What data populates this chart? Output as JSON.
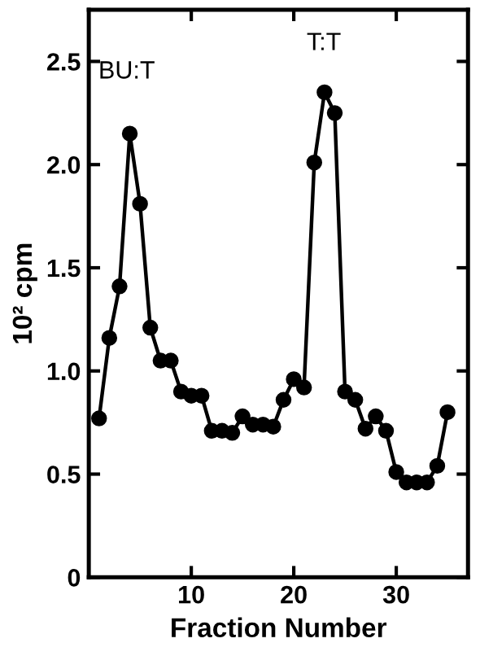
{
  "chart_data": {
    "type": "line",
    "xlabel": "Fraction Number",
    "ylabel": "10² cpm",
    "x": [
      1,
      2,
      3,
      4,
      5,
      6,
      7,
      8,
      9,
      10,
      11,
      12,
      13,
      14,
      15,
      16,
      17,
      18,
      19,
      20,
      21,
      22,
      23,
      24,
      25,
      26,
      27,
      28,
      29,
      30,
      31,
      32,
      33,
      34,
      35
    ],
    "series": [
      {
        "color": "#000000",
        "values": [
          0.77,
          1.16,
          1.41,
          2.15,
          1.81,
          1.21,
          1.05,
          1.05,
          0.9,
          0.88,
          0.88,
          0.71,
          0.71,
          0.7,
          0.78,
          0.74,
          0.74,
          0.73,
          0.86,
          0.96,
          0.92,
          2.01,
          2.35,
          2.25,
          0.9,
          0.86,
          0.72,
          0.78,
          0.71,
          0.51,
          0.46,
          0.46,
          0.46,
          0.54,
          0.8
        ]
      }
    ],
    "xlim": [
      0,
      37
    ],
    "xticks": [
      10,
      20,
      30
    ],
    "ylim": [
      0,
      2.75
    ],
    "yticks": [
      0,
      0.5,
      {
        "value": 1,
        "label": "1.0"
      },
      1.5,
      {
        "value": 2,
        "label": "2.0"
      },
      2.5
    ],
    "annotations": [
      "BU:T",
      "T:T"
    ],
    "marker": "circle",
    "line_style": "solid",
    "grid": false,
    "legend": false
  }
}
